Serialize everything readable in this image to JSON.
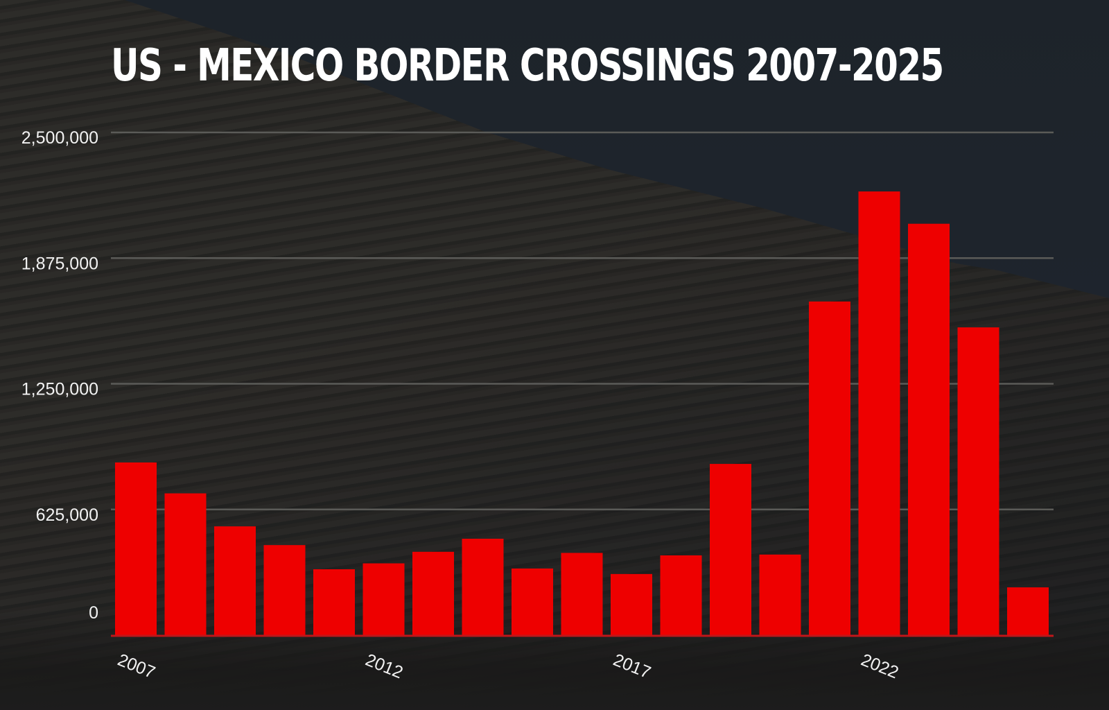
{
  "chart_data": {
    "type": "bar",
    "title": "US - MEXICO BORDER CROSSINGS 2007-2025",
    "xlabel": "",
    "ylabel": "",
    "categories": [
      "2007",
      "2008",
      "2009",
      "2010",
      "2011",
      "2012",
      "2013",
      "2014",
      "2015",
      "2016",
      "2017",
      "2018",
      "2019",
      "2020",
      "2021",
      "2022",
      "2023",
      "2024",
      "2025"
    ],
    "x_tick_labels": [
      "2007",
      "2012",
      "2017",
      "2022"
    ],
    "values": [
      858638,
      705005,
      540865,
      447731,
      327577,
      356873,
      414397,
      479371,
      331333,
      408870,
      303916,
      396579,
      851508,
      400651,
      1659206,
      2206436,
      2045838,
      1530523,
      237565
    ],
    "yticks": [
      0,
      625000,
      1250000,
      1875000,
      2500000
    ],
    "ytick_labels": [
      "0",
      "625,000",
      "1,250,000",
      "1,875,000",
      "2,500,000"
    ],
    "ylim": [
      0,
      2500000
    ],
    "grid": true,
    "legend": "none",
    "colors": {
      "bar": "#ee0000",
      "baseline": "#c0161a",
      "grid": "#5b5b58"
    }
  }
}
